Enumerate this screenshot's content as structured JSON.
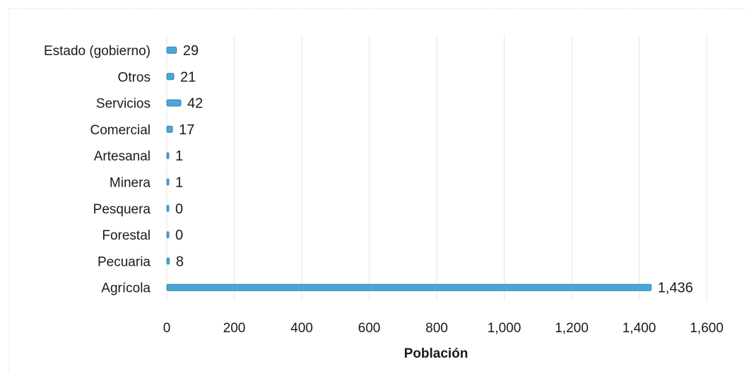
{
  "chart_data": {
    "type": "bar",
    "orientation": "horizontal",
    "categories": [
      "Estado (gobierno)",
      "Otros",
      "Servicios",
      "Comercial",
      "Artesanal",
      "Minera",
      "Pesquera",
      "Forestal",
      "Pecuaria",
      "Agrícola"
    ],
    "values": [
      29,
      21,
      42,
      17,
      1,
      1,
      0,
      0,
      8,
      1436
    ],
    "value_labels": [
      "29",
      "21",
      "42",
      "17",
      "1",
      "1",
      "0",
      "0",
      "8",
      "1,436"
    ],
    "title": "",
    "xlabel": "Población",
    "ylabel": "",
    "xlim": [
      0,
      1600
    ],
    "x_ticks": [
      0,
      200,
      400,
      600,
      800,
      1000,
      1200,
      1400,
      1600
    ],
    "x_tick_labels": [
      "0",
      "200",
      "400",
      "600",
      "800",
      "1,000",
      "1,200",
      "1,400",
      "1,600"
    ],
    "grid": true,
    "legend": "none",
    "bar_color": "#4aa6d6"
  }
}
